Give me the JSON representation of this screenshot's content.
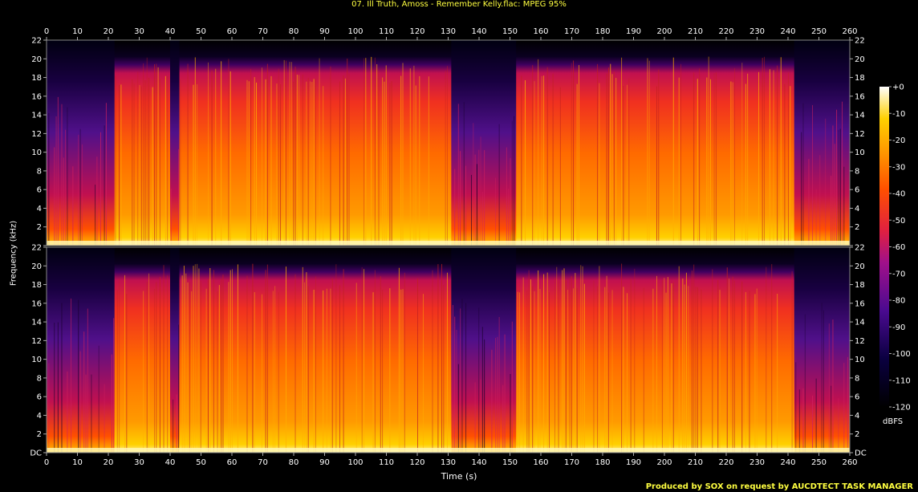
{
  "title": "07. Ill Truth, Amoss - Remember Kelly.flac: MPEG 95%",
  "credit": "Produced by SOX on request by AUCDTECT TASK MANAGER",
  "chart_data": {
    "type": "heatmap",
    "title": "07. Ill Truth, Amoss - Remember Kelly.flac: MPEG 95%",
    "xlabel": "Time (s)",
    "ylabel": "Frequency (kHz)",
    "x_ticks": [
      "0",
      "10",
      "20",
      "30",
      "40",
      "50",
      "60",
      "70",
      "80",
      "90",
      "100",
      "110",
      "120",
      "130",
      "140",
      "150",
      "160",
      "170",
      "180",
      "190",
      "200",
      "210",
      "220",
      "230",
      "240",
      "250",
      "260"
    ],
    "y_ticks": [
      "DC",
      "2",
      "4",
      "6",
      "8",
      "10",
      "12",
      "14",
      "16",
      "18",
      "20",
      "22"
    ],
    "xlim": [
      0,
      260
    ],
    "ylim_khz": [
      0,
      22
    ],
    "channels": 2,
    "colorbar": {
      "label": "dBFS",
      "ticks": [
        "+0",
        "-10",
        "-20",
        "-30",
        "-40",
        "-50",
        "-60",
        "-70",
        "-80",
        "-90",
        "-100",
        "-110",
        "-120"
      ],
      "range": [
        -120,
        0
      ]
    },
    "cutoff_khz_approx": 19.5,
    "quiet_segments_s": [
      [
        0,
        22
      ],
      [
        40,
        43
      ],
      [
        131,
        152
      ],
      [
        242,
        260
      ]
    ]
  }
}
